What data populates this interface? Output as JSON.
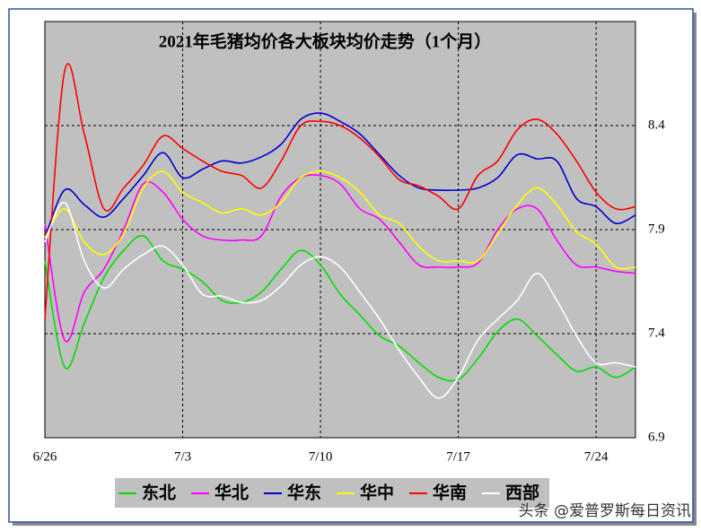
{
  "chart_data": {
    "type": "line",
    "title": "2021年毛猪均价各大板块均价走势（1个月）",
    "categories": [
      "6/26",
      null,
      null,
      null,
      null,
      null,
      null,
      "7/3",
      null,
      null,
      null,
      null,
      null,
      null,
      "7/10",
      null,
      null,
      null,
      null,
      null,
      null,
      "7/17",
      null,
      null,
      null,
      null,
      null,
      null,
      "7/24",
      null,
      null
    ],
    "ylim": [
      6.9,
      8.9
    ],
    "yticks": [
      6.9,
      7.4,
      7.9,
      8.4
    ],
    "grid": true,
    "series": [
      {
        "name": "东北",
        "color": "#00e000",
        "values": [
          7.75,
          7.24,
          7.45,
          7.67,
          7.8,
          7.87,
          7.75,
          7.71,
          7.65,
          7.56,
          7.55,
          7.6,
          7.71,
          7.8,
          7.73,
          7.59,
          7.49,
          7.39,
          7.34,
          7.26,
          7.19,
          7.18,
          7.28,
          7.41,
          7.47,
          7.39,
          7.3,
          7.22,
          7.24,
          7.19,
          7.24
        ]
      },
      {
        "name": "华北",
        "color": "#ff00ff",
        "values": [
          7.93,
          7.37,
          7.6,
          7.71,
          7.9,
          8.12,
          8.08,
          7.95,
          7.87,
          7.85,
          7.85,
          7.87,
          8.06,
          8.15,
          8.16,
          8.12,
          8.0,
          7.95,
          7.84,
          7.73,
          7.72,
          7.72,
          7.74,
          7.9,
          8.0,
          8.0,
          7.85,
          7.73,
          7.72,
          7.7,
          7.69
        ]
      },
      {
        "name": "华东",
        "color": "#0000d0",
        "values": [
          7.86,
          8.09,
          8.02,
          7.96,
          8.05,
          8.16,
          8.27,
          8.15,
          8.19,
          8.23,
          8.22,
          8.25,
          8.31,
          8.43,
          8.46,
          8.42,
          8.36,
          8.26,
          8.16,
          8.1,
          8.09,
          8.09,
          8.1,
          8.15,
          8.26,
          8.24,
          8.23,
          8.05,
          8.01,
          7.93,
          7.97
        ]
      },
      {
        "name": "华中",
        "color": "#ffff00",
        "values": [
          7.86,
          8.0,
          7.84,
          7.78,
          7.88,
          8.1,
          8.18,
          8.08,
          8.03,
          7.98,
          8.0,
          7.97,
          8.03,
          8.15,
          8.18,
          8.15,
          8.08,
          7.97,
          7.93,
          7.82,
          7.75,
          7.75,
          7.75,
          7.88,
          8.02,
          8.1,
          8.02,
          7.89,
          7.83,
          7.72,
          7.72
        ]
      },
      {
        "name": "华南",
        "color": "#ff0000",
        "values": [
          7.47,
          8.66,
          8.36,
          8.0,
          8.1,
          8.21,
          8.35,
          8.29,
          8.23,
          8.18,
          8.16,
          8.1,
          8.23,
          8.4,
          8.42,
          8.4,
          8.34,
          8.25,
          8.14,
          8.11,
          8.06,
          8.0,
          8.16,
          8.23,
          8.38,
          8.43,
          8.36,
          8.23,
          8.08,
          8.0,
          8.01
        ]
      },
      {
        "name": "西部",
        "color": "#ffffff",
        "values": [
          7.84,
          8.03,
          7.75,
          7.62,
          7.71,
          7.78,
          7.82,
          7.73,
          7.59,
          7.58,
          7.55,
          7.56,
          7.63,
          7.73,
          7.77,
          7.72,
          7.6,
          7.47,
          7.32,
          7.19,
          7.09,
          7.19,
          7.37,
          7.47,
          7.56,
          7.69,
          7.56,
          7.39,
          7.26,
          7.26,
          7.24
        ]
      }
    ]
  },
  "watermark": "头条 @爱普罗斯每日资讯"
}
